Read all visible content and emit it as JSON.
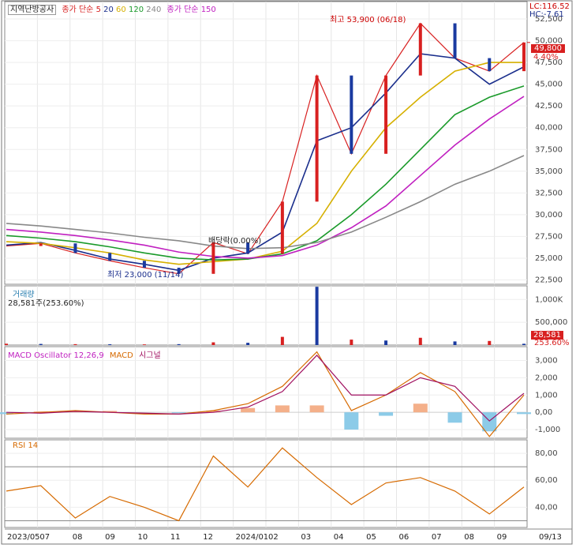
{
  "panels": {
    "price": {
      "name": "지역난방공사",
      "ma_label": "종가 단순",
      "ma_periods": [
        "5",
        "20",
        "60",
        "120",
        "240"
      ],
      "ma_colors": [
        "#d82020",
        "#1a2e8c",
        "#d6b000",
        "#1a9a2a",
        "#c020c0",
        "#888888"
      ],
      "ma2_label": "종가 단순 150",
      "lc": "LC:116.52",
      "hc": "HC:-7.61",
      "last_price": "49,800",
      "last_change": "4.40%",
      "high_annot": "최고 53,900 (06/18)",
      "low_annot": "최저 23,000 (11/14)",
      "div_annot": "배당락(0.00%)",
      "yticks": [
        "52,500",
        "50,000",
        "47,500",
        "45,000",
        "42,500",
        "40,000",
        "37,500",
        "35,000",
        "32,500",
        "30,000",
        "27,500",
        "25,000",
        "22,500"
      ]
    },
    "volume": {
      "label": "거래량",
      "value": "28,581주(253.60%)",
      "yticks": [
        "1,000K",
        "500,000"
      ],
      "last_value": "28,581",
      "last_pct": "253.60%"
    },
    "macd": {
      "label": "MACD Oscillator 12,26,9",
      "label2": "MACD",
      "label3": "시그널",
      "yticks": [
        "3,000",
        "2,000",
        "1,000",
        "0,00",
        "-1,000"
      ]
    },
    "rsi": {
      "label": "RSI 14",
      "yticks": [
        "80,00",
        "60,00",
        "40,00"
      ]
    }
  },
  "x_axis": [
    "2023/05",
    "07",
    "08",
    "09",
    "10",
    "11",
    "12",
    "2024/01",
    "02",
    "03",
    "04",
    "05",
    "06",
    "07",
    "08",
    "09",
    "09/13"
  ],
  "chart_data": [
    {
      "type": "line",
      "title": "지역난방공사",
      "ylim": [
        22000,
        54500
      ],
      "x": [
        "2023/05",
        "07",
        "08",
        "09",
        "10",
        "11",
        "12",
        "2024/01",
        "02",
        "03",
        "04",
        "05",
        "06",
        "07",
        "08",
        "09"
      ],
      "series": [
        {
          "name": "종가",
          "values": [
            26400,
            26700,
            25600,
            24700,
            23900,
            23200,
            26800,
            25500,
            31500,
            46000,
            37000,
            46000,
            52000,
            48000,
            46500,
            49800
          ]
        },
        {
          "name": "20",
          "values": [
            26500,
            26800,
            25900,
            24900,
            24300,
            23600,
            25000,
            25600,
            28000,
            38500,
            40000,
            44000,
            48500,
            48000,
            45000,
            47000
          ]
        },
        {
          "name": "60",
          "values": [
            26900,
            26700,
            26200,
            25600,
            24800,
            24300,
            24600,
            24900,
            25800,
            29000,
            35000,
            40000,
            43500,
            46500,
            47500,
            47500
          ]
        },
        {
          "name": "120",
          "values": [
            27600,
            27300,
            26900,
            26300,
            25600,
            25000,
            24800,
            24900,
            25500,
            27000,
            30000,
            33500,
            37500,
            41500,
            43500,
            44800
          ]
        },
        {
          "name": "240",
          "values": [
            28300,
            28000,
            27600,
            27100,
            26500,
            25700,
            25200,
            25000,
            25300,
            26500,
            28500,
            31000,
            34500,
            38000,
            41000,
            43600
          ]
        },
        {
          "name": "150",
          "values": [
            29000,
            28700,
            28300,
            27900,
            27400,
            27000,
            26400,
            26100,
            26200,
            26800,
            28000,
            29700,
            31500,
            33500,
            35000,
            36800
          ]
        }
      ]
    },
    {
      "type": "bar",
      "title": "거래량",
      "x": [
        "2023/05",
        "07",
        "08",
        "09",
        "10",
        "11",
        "12",
        "2024/01",
        "02",
        "03",
        "04",
        "05",
        "06",
        "07",
        "08",
        "09"
      ],
      "ylim": [
        0,
        1300000
      ],
      "values": [
        30000,
        25000,
        20000,
        18000,
        15000,
        20000,
        60000,
        50000,
        180000,
        1280000,
        120000,
        100000,
        160000,
        80000,
        90000,
        28581
      ]
    },
    {
      "type": "line",
      "title": "MACD Oscillator 12,26,9",
      "x": [
        "2023/05",
        "07",
        "08",
        "09",
        "10",
        "11",
        "12",
        "2024/01",
        "02",
        "03",
        "04",
        "05",
        "06",
        "07",
        "08",
        "09"
      ],
      "ylim": [
        -1500,
        3800
      ],
      "series": [
        {
          "name": "MACD Oscillator",
          "values": [
            -100,
            50,
            100,
            80,
            0,
            -50,
            100,
            250,
            400,
            400,
            -1000,
            -200,
            500,
            -600,
            -1100,
            -100
          ]
        },
        {
          "name": "MACD",
          "values": [
            -100,
            0,
            100,
            0,
            -100,
            -100,
            100,
            500,
            1500,
            3500,
            100,
            1000,
            2300,
            1200,
            -1400,
            1000
          ]
        },
        {
          "name": "시그널",
          "values": [
            0,
            -50,
            50,
            0,
            -50,
            -100,
            0,
            300,
            1200,
            3300,
            1000,
            1000,
            2000,
            1500,
            -500,
            1100
          ]
        }
      ]
    },
    {
      "type": "line",
      "title": "RSI 14",
      "x": [
        "2023/05",
        "07",
        "08",
        "09",
        "10",
        "11",
        "12",
        "2024/01",
        "02",
        "03",
        "04",
        "05",
        "06",
        "07",
        "08",
        "09"
      ],
      "ylim": [
        25,
        90
      ],
      "series": [
        {
          "name": "RSI 14",
          "values": [
            52,
            56,
            32,
            48,
            40,
            30,
            78,
            55,
            84,
            62,
            42,
            58,
            62,
            52,
            35,
            55
          ]
        }
      ]
    }
  ]
}
